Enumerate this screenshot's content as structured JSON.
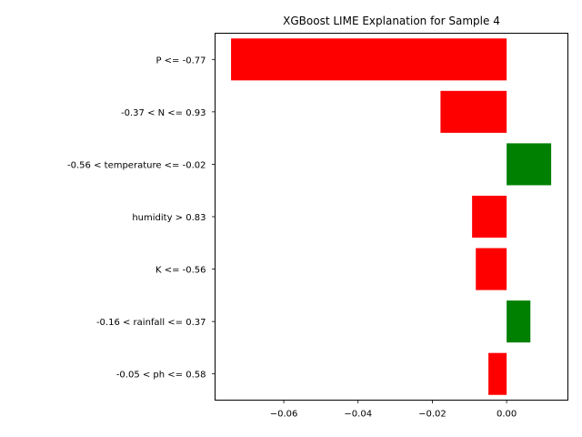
{
  "chart_data": {
    "type": "bar",
    "orientation": "horizontal",
    "title": "XGBoost LIME Explanation for Sample 4",
    "xlabel": "",
    "ylabel": "",
    "categories": [
      "P <= -0.77",
      "-0.37 < N <= 0.93",
      "-0.56 < temperature <= -0.02",
      "humidity > 0.83",
      "K <= -0.56",
      "-0.16 < rainfall <= 0.37",
      "-0.05 < ph <= 0.58"
    ],
    "values": [
      -0.0742,
      -0.0178,
      0.012,
      -0.0093,
      -0.0083,
      0.0064,
      -0.0049
    ],
    "colors": [
      "#ff0000",
      "#ff0000",
      "#008000",
      "#ff0000",
      "#ff0000",
      "#008000",
      "#ff0000"
    ],
    "xlim": [
      -0.0785,
      0.0165
    ],
    "xticks": [
      -0.06,
      -0.04,
      -0.02,
      0.0
    ],
    "xtick_labels": [
      "−0.06",
      "−0.04",
      "−0.02",
      "0.00"
    ],
    "grid": false,
    "legend": "none"
  }
}
